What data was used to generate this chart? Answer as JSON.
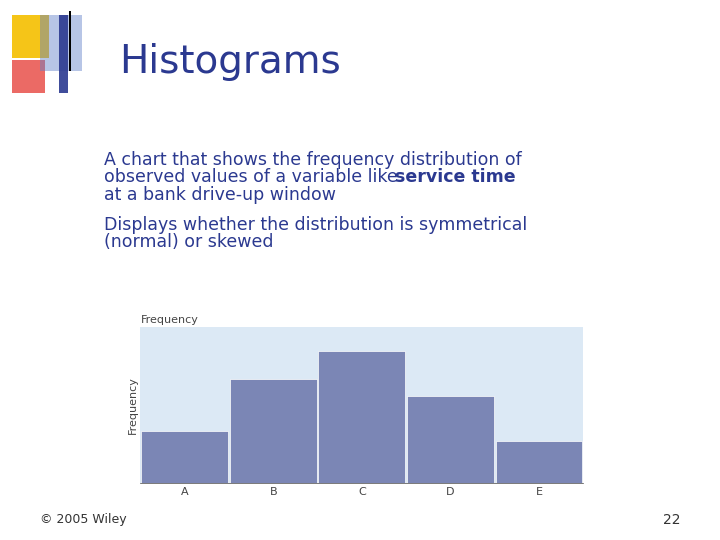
{
  "title": "Histograms",
  "title_color": "#2B3990",
  "title_fontsize": 28,
  "background_color": "#FFFFFF",
  "bullet_color": "#2B3990",
  "bullet_fontsize": 12.5,
  "bullet_marker_color": "#2B3990",
  "hist_categories": [
    "A",
    "B",
    "C",
    "D",
    "E"
  ],
  "hist_values": [
    1.5,
    3.0,
    3.8,
    2.5,
    1.2
  ],
  "hist_bar_color": "#7B86B5",
  "hist_bar_edgecolor": "#FFFFFF",
  "hist_bg_color": "#DCE9F5",
  "hist_ylabel": "Frequency",
  "hist_title": "Frequency",
  "hist_title_fontsize": 8,
  "hist_axis_color": "#444444",
  "hist_tick_fontsize": 8,
  "footer_text": "© 2005 Wiley",
  "footer_color": "#333333",
  "footer_fontsize": 9,
  "page_number": "22",
  "page_number_color": "#333333",
  "page_number_fontsize": 10,
  "logo_yellow": "#F5C518",
  "logo_red": "#E8504A",
  "logo_blue_dark": "#2B3990",
  "logo_blue_light": "#6080C8"
}
